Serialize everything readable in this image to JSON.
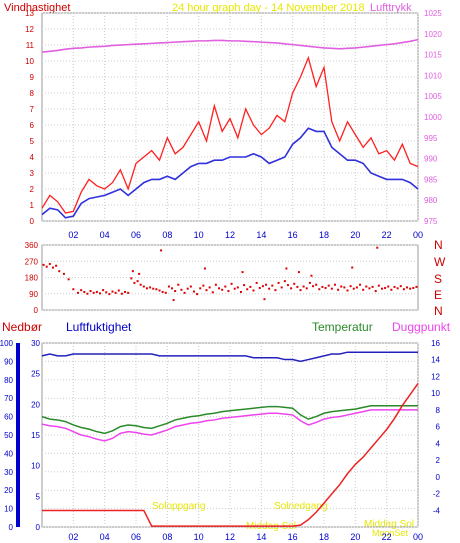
{
  "colors": {
    "background": "#ffffff",
    "wind_label": "#cc0000",
    "title": "#e8e800",
    "pressure": "#e060e0",
    "wind_gust": "#ff2020",
    "wind_avg": "#3030dd",
    "direction": "#dd0000",
    "precip": "#ee2222",
    "humidity": "#2222bb",
    "temperature": "#2a8a2a",
    "dewpoint": "#ee44ee",
    "axis_blue": "#0000cc",
    "axis_red": "#cc0000",
    "sun_label": "#e8e800",
    "grid": "#cccccc"
  },
  "header": {
    "wind_label": "Vindhastighet",
    "title": "24 hour graph day - 14 November 2018",
    "pressure_label": "Lufttrykk"
  },
  "lower_header": {
    "precip_label": "Nedbør",
    "humidity_label": "Luftfuktighet",
    "temp_label": "Temperatur",
    "dew_label": "Duggpunkt"
  },
  "compass": [
    "N",
    "W",
    "S",
    "E",
    "N"
  ],
  "annotations": {
    "sunrise": "Soloppgang",
    "sunset": "Solnedgang",
    "solar_noon_1": "Middag Sol",
    "solar_noon_2": "Middag Sol",
    "moonset": "MoonSet"
  },
  "chart_data": [
    {
      "type": "line",
      "x_ticks": [
        "02",
        "04",
        "06",
        "08",
        "10",
        "12",
        "14",
        "16",
        "18",
        "20",
        "22",
        "00"
      ],
      "y_left_ticks": [
        "0",
        "1",
        "2",
        "3",
        "4",
        "5",
        "6",
        "7",
        "8",
        "9",
        "10",
        "11",
        "12",
        "13"
      ],
      "y_right_ticks": [
        "975",
        "980",
        "985",
        "990",
        "995",
        "1000",
        "1005",
        "1010",
        "1015",
        "1020",
        "1025"
      ],
      "ylim_left": [
        0,
        13
      ],
      "ylim_right": [
        975,
        1025
      ],
      "x_hours": [
        0,
        0.5,
        1,
        1.5,
        2,
        2.5,
        3,
        3.5,
        4,
        4.5,
        5,
        5.5,
        6,
        6.5,
        7,
        7.5,
        8,
        8.5,
        9,
        9.5,
        10,
        10.5,
        11,
        11.5,
        12,
        12.5,
        13,
        13.5,
        14,
        14.5,
        15,
        15.5,
        16,
        16.5,
        17,
        17.5,
        18,
        18.5,
        19,
        19.5,
        20,
        20.5,
        21,
        21.5,
        22,
        22.5,
        23,
        23.5,
        24
      ],
      "series": [
        {
          "name": "wind_gust",
          "axis": "left",
          "values": [
            0.8,
            1.6,
            1.2,
            0.5,
            0.6,
            1.8,
            2.6,
            2.2,
            2.0,
            2.4,
            3.2,
            2.0,
            3.6,
            4.0,
            4.4,
            3.8,
            5.2,
            4.2,
            4.6,
            5.4,
            6.2,
            5.0,
            7.2,
            5.6,
            6.4,
            5.2,
            7.0,
            6.0,
            5.4,
            5.8,
            6.6,
            6.2,
            8.0,
            9.0,
            10.2,
            8.4,
            9.6,
            6.2,
            5.0,
            6.2,
            5.4,
            4.6,
            5.2,
            4.2,
            4.4,
            3.8,
            4.8,
            3.6,
            3.4
          ]
        },
        {
          "name": "wind_avg",
          "axis": "left",
          "values": [
            0.4,
            0.8,
            0.7,
            0.2,
            0.3,
            1.1,
            1.4,
            1.5,
            1.6,
            1.8,
            2.0,
            1.6,
            2.0,
            2.4,
            2.6,
            2.6,
            2.8,
            2.6,
            3.0,
            3.4,
            3.6,
            3.6,
            3.8,
            3.8,
            4.0,
            4.0,
            4.0,
            4.2,
            4.0,
            3.6,
            3.8,
            4.0,
            4.8,
            5.2,
            5.8,
            5.6,
            5.6,
            4.6,
            4.2,
            3.8,
            3.8,
            3.6,
            3.0,
            2.8,
            2.6,
            2.6,
            2.6,
            2.4,
            2.0
          ]
        },
        {
          "name": "pressure",
          "axis": "right",
          "values": [
            1015.6,
            1015.8,
            1016.0,
            1016.3,
            1016.5,
            1016.6,
            1016.8,
            1016.9,
            1017.0,
            1017.2,
            1017.3,
            1017.4,
            1017.5,
            1017.6,
            1017.7,
            1017.8,
            1017.9,
            1018.0,
            1018.1,
            1018.2,
            1018.3,
            1018.3,
            1018.4,
            1018.4,
            1018.3,
            1018.3,
            1018.2,
            1018.1,
            1018.0,
            1017.9,
            1017.8,
            1017.6,
            1017.4,
            1017.2,
            1017.0,
            1016.8,
            1016.6,
            1016.5,
            1016.4,
            1016.5,
            1016.6,
            1016.8,
            1017.0,
            1017.2,
            1017.4,
            1017.6,
            1017.9,
            1018.2,
            1018.6
          ]
        }
      ]
    },
    {
      "type": "scatter",
      "x_ticks": [
        "02",
        "04",
        "06",
        "08",
        "10",
        "12",
        "14",
        "16",
        "18",
        "20",
        "22",
        "00"
      ],
      "y_ticks": [
        "0",
        "90",
        "180",
        "270",
        "360"
      ],
      "ylim": [
        0,
        360
      ],
      "series": [
        {
          "name": "wind_direction",
          "x": [
            0.1,
            0.3,
            0.5,
            0.7,
            0.9,
            1.1,
            1.4,
            1.7,
            2.0,
            2.3,
            2.5,
            2.7,
            2.9,
            3.1,
            3.3,
            3.5,
            3.7,
            3.9,
            4.1,
            4.3,
            4.5,
            4.7,
            4.9,
            5.1,
            5.3,
            5.5,
            5.7,
            5.9,
            6.1,
            6.3,
            6.5,
            6.7,
            6.9,
            7.1,
            7.3,
            7.5,
            7.7,
            7.9,
            8.1,
            8.3,
            8.5,
            8.7,
            8.9,
            9.1,
            9.3,
            9.5,
            9.7,
            9.9,
            10.1,
            10.3,
            10.5,
            10.7,
            10.9,
            11.1,
            11.3,
            11.5,
            11.7,
            11.9,
            12.1,
            12.3,
            12.5,
            12.7,
            12.9,
            13.1,
            13.3,
            13.5,
            13.7,
            13.9,
            14.1,
            14.3,
            14.5,
            14.7,
            14.9,
            15.1,
            15.3,
            15.5,
            15.7,
            15.9,
            16.1,
            16.3,
            16.5,
            16.7,
            16.9,
            17.1,
            17.3,
            17.5,
            17.7,
            17.9,
            18.1,
            18.3,
            18.5,
            18.7,
            18.9,
            19.1,
            19.3,
            19.5,
            19.7,
            19.9,
            20.1,
            20.3,
            20.5,
            20.7,
            20.9,
            21.1,
            21.3,
            21.5,
            21.7,
            21.9,
            22.1,
            22.3,
            22.5,
            22.7,
            22.9,
            23.1,
            23.3,
            23.5,
            23.7,
            23.9,
            5.8,
            6.2,
            7.6,
            10.4,
            12.8,
            15.6,
            17.2,
            19.8,
            21.4,
            16.4,
            8.4,
            14.2
          ],
          "y": [
            250,
            240,
            255,
            235,
            245,
            215,
            200,
            170,
            115,
            95,
            110,
            100,
            90,
            105,
            95,
            100,
            92,
            110,
            98,
            88,
            102,
            95,
            108,
            90,
            100,
            95,
            175,
            150,
            160,
            140,
            130,
            120,
            125,
            118,
            115,
            108,
            100,
            95,
            130,
            120,
            105,
            140,
            112,
            95,
            118,
            130,
            102,
            88,
            120,
            135,
            110,
            125,
            98,
            140,
            120,
            112,
            130,
            105,
            145,
            118,
            125,
            100,
            138,
            115,
            128,
            108,
            150,
            122,
            132,
            140,
            118,
            135,
            110,
            150,
            125,
            160,
            138,
            120,
            145,
            128,
            110,
            130,
            120,
            150,
            132,
            140,
            115,
            128,
            122,
            135,
            118,
            140,
            112,
            130,
            125,
            108,
            132,
            118,
            125,
            140,
            112,
            130,
            120,
            128,
            105,
            135,
            118,
            122,
            130,
            112,
            128,
            120,
            132,
            115,
            125,
            118,
            122,
            128,
            215,
            200,
            330,
            230,
            210,
            230,
            190,
            235,
            345,
            210,
            55,
            60
          ]
        }
      ]
    },
    {
      "type": "line",
      "x_ticks": [
        "02",
        "04",
        "06",
        "08",
        "10",
        "12",
        "14",
        "16",
        "18",
        "20",
        "22",
        "00"
      ],
      "y_left_precip_ticks": [
        "0",
        "10",
        "20",
        "30",
        "40",
        "50",
        "60",
        "70",
        "80",
        "90",
        "100"
      ],
      "y_left_humidity_ticks": [
        "0",
        "5",
        "10",
        "15",
        "20",
        "25",
        "30"
      ],
      "y_right_ticks": [
        "-4",
        "-2",
        "0",
        "2",
        "4",
        "6",
        "8",
        "10",
        "12",
        "14",
        "16"
      ],
      "ylim_precip": [
        0,
        100
      ],
      "ylim_humidity": [
        0,
        30
      ],
      "ylim_temperature": [
        -6,
        16
      ],
      "x_hours": [
        0,
        0.5,
        1,
        1.5,
        2,
        2.5,
        3,
        3.5,
        4,
        4.5,
        5,
        5.5,
        6,
        6.5,
        7,
        7.5,
        8,
        8.5,
        9,
        9.5,
        10,
        10.5,
        11,
        11.5,
        12,
        12.5,
        13,
        13.5,
        14,
        14.5,
        15,
        15.5,
        16,
        16.5,
        17,
        17.5,
        18,
        18.5,
        19,
        19.5,
        20,
        20.5,
        21,
        21.5,
        22,
        22.5,
        23,
        23.5,
        24
      ],
      "series": [
        {
          "name": "humidity",
          "axis": "humidity",
          "values": [
            93,
            94,
            93,
            93,
            94,
            94,
            94,
            94,
            94,
            94,
            94,
            94,
            94,
            94,
            94,
            93,
            93,
            93,
            93,
            93,
            93,
            93,
            93,
            93,
            93,
            93,
            93,
            92,
            92,
            92,
            92,
            91,
            91,
            90,
            91,
            92,
            93,
            94,
            94,
            95,
            95,
            95,
            95,
            95,
            95,
            95,
            95,
            95,
            95
          ]
        },
        {
          "name": "temperature",
          "axis": "temperature",
          "values": [
            7.2,
            6.9,
            6.8,
            6.6,
            6.2,
            5.9,
            5.7,
            5.4,
            5.2,
            5.5,
            6.0,
            6.2,
            6.1,
            5.9,
            5.8,
            6.1,
            6.4,
            6.8,
            7.0,
            7.2,
            7.3,
            7.5,
            7.6,
            7.8,
            7.9,
            8.0,
            8.1,
            8.2,
            8.3,
            8.4,
            8.4,
            8.3,
            8.2,
            7.4,
            6.9,
            7.2,
            7.6,
            7.8,
            7.9,
            8.0,
            8.1,
            8.3,
            8.5,
            8.5,
            8.5,
            8.5,
            8.5,
            8.5,
            8.5
          ]
        },
        {
          "name": "dewpoint",
          "axis": "temperature",
          "values": [
            6.3,
            6.1,
            6.0,
            5.8,
            5.4,
            5.0,
            4.8,
            4.5,
            4.3,
            4.6,
            5.2,
            5.4,
            5.3,
            5.1,
            5.0,
            5.3,
            5.6,
            6.0,
            6.2,
            6.4,
            6.5,
            6.7,
            6.8,
            7.0,
            7.1,
            7.2,
            7.3,
            7.4,
            7.5,
            7.6,
            7.6,
            7.5,
            7.4,
            6.7,
            6.2,
            6.5,
            6.9,
            7.1,
            7.2,
            7.4,
            7.6,
            7.8,
            8.0,
            8.0,
            8.0,
            8.0,
            8.0,
            8.0,
            8.0
          ]
        },
        {
          "name": "precipitation",
          "axis": "precip",
          "values": [
            9,
            9,
            9,
            9,
            9,
            9,
            9,
            9,
            9,
            9,
            9,
            9,
            9,
            9,
            0.5,
            0.5,
            0.5,
            0.5,
            0.5,
            0.5,
            0.5,
            0.5,
            0.5,
            0.5,
            0.5,
            0.5,
            0.5,
            0.5,
            0.5,
            0.5,
            0.5,
            0.5,
            0.5,
            1,
            4,
            8,
            13,
            18,
            23,
            29,
            34,
            38,
            43,
            48,
            53,
            59,
            66,
            72,
            78
          ]
        }
      ]
    }
  ]
}
